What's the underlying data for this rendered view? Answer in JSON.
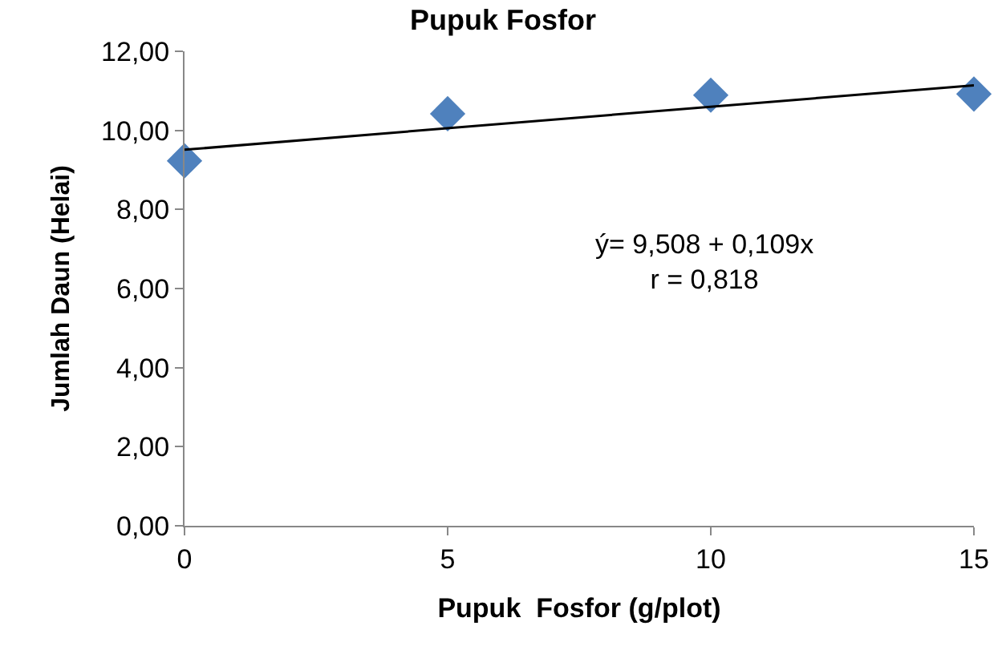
{
  "chart_data": {
    "type": "scatter",
    "title": "Pupuk Fosfor",
    "xlabel": "Pupuk  Fosfor (g/plot)",
    "ylabel": "Jumlah Daun (Helai)",
    "x": [
      0,
      5,
      10,
      15
    ],
    "series": [
      {
        "color": "#4f81bd",
        "marker": "diamond",
        "values": [
          9.23,
          10.42,
          10.89,
          10.92
        ]
      },
      {
        "type": "line",
        "color": "#000000",
        "marker": "none",
        "line_style": "solid",
        "x": [
          0,
          15
        ],
        "values": [
          9.51,
          11.14
        ]
      }
    ],
    "xlim": [
      0,
      15
    ],
    "xticks": [
      0,
      5,
      10,
      15
    ],
    "ylim": [
      0,
      12
    ],
    "yticks": [
      {
        "value": 0,
        "label": "0,00"
      },
      {
        "value": 2,
        "label": "2,00"
      },
      {
        "value": 4,
        "label": "4,00"
      },
      {
        "value": 6,
        "label": "6,00"
      },
      {
        "value": 8,
        "label": "8,00"
      },
      {
        "value": 10,
        "label": "10,00"
      },
      {
        "value": 12,
        "label": "12,00"
      }
    ],
    "annotations": [
      "ý= 9,508 + 0,109x\nr = 0,818"
    ]
  }
}
